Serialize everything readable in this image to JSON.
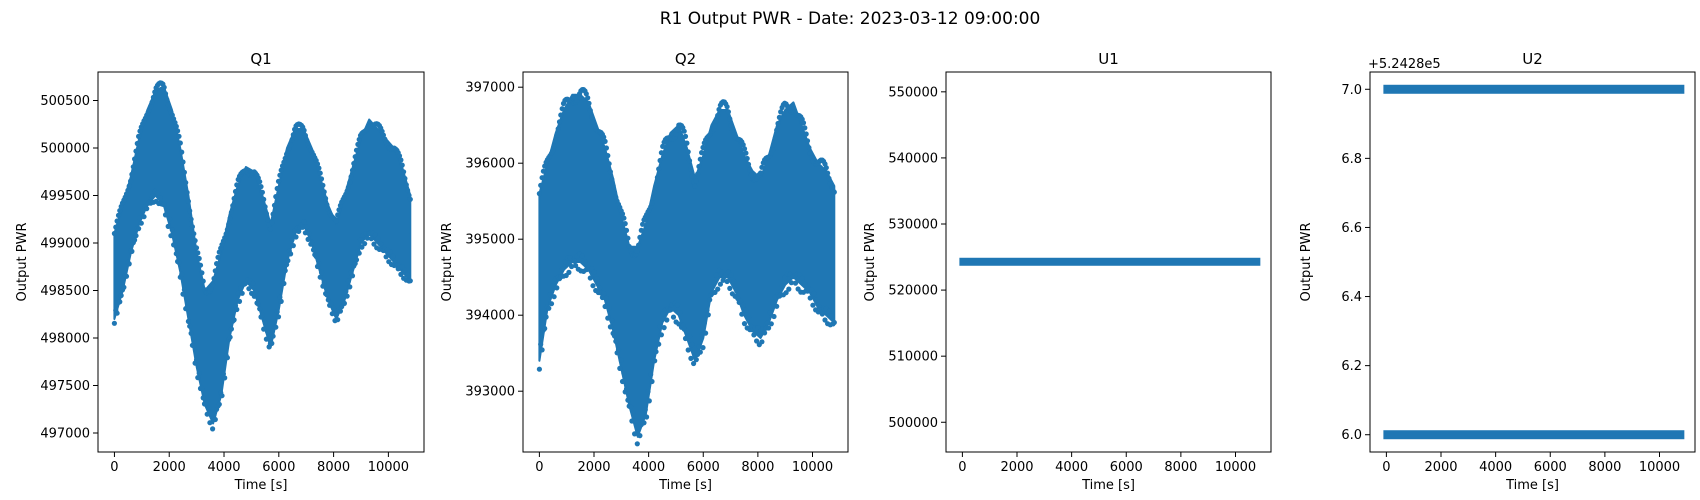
{
  "figure": {
    "title": "R1 Output PWR - Date: 2023-03-12 09:00:00",
    "marker_color": "#1f77b4"
  },
  "chart_data": [
    {
      "type": "scatter",
      "title": "Q1",
      "xlabel": "Time [s]",
      "ylabel": "Output PWR",
      "xlim": [
        -600,
        11300
      ],
      "ylim": [
        496800,
        500800
      ],
      "xticks": [
        0,
        2000,
        4000,
        6000,
        8000,
        10000
      ],
      "xtick_labels": [
        "0",
        "2000",
        "4000",
        "6000",
        "8000",
        "10000"
      ],
      "yticks": [
        497000,
        497500,
        498000,
        498500,
        499000,
        499500,
        500000,
        500500
      ],
      "ytick_labels": [
        "497000",
        "497500",
        "498000",
        "498500",
        "499000",
        "499500",
        "500000",
        "500500"
      ],
      "offset_label": "",
      "x": [
        0,
        300,
        600,
        900,
        1200,
        1500,
        1800,
        2100,
        2400,
        2700,
        3000,
        3300,
        3600,
        3900,
        4200,
        4500,
        4800,
        5100,
        5400,
        5700,
        6000,
        6300,
        6600,
        6900,
        7200,
        7500,
        7800,
        8100,
        8400,
        8700,
        9000,
        9300,
        9600,
        9900,
        10200,
        10500,
        10800
      ],
      "y_low": [
        498200,
        498500,
        498900,
        499200,
        499400,
        499500,
        499400,
        499100,
        498700,
        498200,
        497700,
        497300,
        497100,
        497400,
        498000,
        498400,
        498600,
        498500,
        498200,
        497900,
        498300,
        498800,
        499100,
        499200,
        499000,
        498700,
        498400,
        498200,
        498400,
        498700,
        499000,
        499100,
        499000,
        498900,
        498800,
        498700,
        498600
      ],
      "y_high": [
        499100,
        499400,
        499700,
        500100,
        500400,
        500600,
        500650,
        500400,
        500000,
        499500,
        498900,
        498500,
        498600,
        498900,
        499300,
        499600,
        499800,
        499750,
        499500,
        499200,
        499600,
        500000,
        500200,
        500200,
        500000,
        499700,
        499400,
        499200,
        499500,
        499800,
        500100,
        500300,
        500200,
        500100,
        500000,
        499800,
        499500
      ]
    },
    {
      "type": "scatter",
      "title": "Q2",
      "xlabel": "Time [s]",
      "ylabel": "Output PWR",
      "xlim": [
        -600,
        11300
      ],
      "ylim": [
        392200,
        397200
      ],
      "xticks": [
        0,
        2000,
        4000,
        6000,
        8000,
        10000
      ],
      "xtick_labels": [
        "0",
        "2000",
        "4000",
        "6000",
        "8000",
        "10000"
      ],
      "yticks": [
        393000,
        394000,
        395000,
        396000,
        397000
      ],
      "ytick_labels": [
        "393000",
        "394000",
        "395000",
        "396000",
        "397000"
      ],
      "offset_label": "",
      "x": [
        0,
        300,
        600,
        900,
        1200,
        1500,
        1800,
        2100,
        2400,
        2700,
        3000,
        3300,
        3600,
        3900,
        4200,
        4500,
        4800,
        5100,
        5400,
        5700,
        6000,
        6300,
        6600,
        6900,
        7200,
        7500,
        7800,
        8100,
        8400,
        8700,
        9000,
        9300,
        9600,
        9900,
        10200,
        10500,
        10800
      ],
      "y_low": [
        393400,
        394100,
        394400,
        394600,
        394700,
        394700,
        394600,
        394400,
        394200,
        393800,
        393300,
        392800,
        392400,
        392700,
        393400,
        393900,
        394100,
        394000,
        393700,
        393400,
        393700,
        394300,
        394500,
        394500,
        394300,
        394000,
        393800,
        393700,
        393900,
        394200,
        394400,
        394500,
        394400,
        394300,
        394100,
        394000,
        393900
      ],
      "y_high": [
        395600,
        396000,
        396400,
        396700,
        396900,
        396900,
        396800,
        396500,
        396200,
        395800,
        395300,
        394900,
        394900,
        395200,
        395700,
        396100,
        396400,
        396500,
        396200,
        395800,
        396100,
        396500,
        396700,
        396700,
        396400,
        396100,
        395900,
        395800,
        396100,
        396500,
        396700,
        396800,
        396500,
        396200,
        396000,
        395900,
        395700
      ]
    },
    {
      "type": "scatter",
      "title": "U1",
      "xlabel": "Time [s]",
      "ylabel": "Output PWR",
      "xlim": [
        -600,
        11300
      ],
      "ylim": [
        495500,
        553000
      ],
      "xticks": [
        0,
        2000,
        4000,
        6000,
        8000,
        10000
      ],
      "xtick_labels": [
        "0",
        "2000",
        "4000",
        "6000",
        "8000",
        "10000"
      ],
      "yticks": [
        500000,
        510000,
        520000,
        530000,
        540000,
        550000
      ],
      "ytick_labels": [
        "500000",
        "510000",
        "520000",
        "530000",
        "540000",
        "550000"
      ],
      "offset_label": "",
      "x": [
        0,
        10800
      ],
      "y_low": [
        524283,
        524283
      ],
      "y_high": [
        524287,
        524287
      ]
    },
    {
      "type": "scatter",
      "title": "U2",
      "xlabel": "Time [s]",
      "ylabel": "Output PWR",
      "xlim": [
        -600,
        11300
      ],
      "ylim": [
        5.95,
        7.05
      ],
      "xticks": [
        0,
        2000,
        4000,
        6000,
        8000,
        10000
      ],
      "xtick_labels": [
        "0",
        "2000",
        "4000",
        "6000",
        "8000",
        "10000"
      ],
      "yticks": [
        6.0,
        6.2,
        6.4,
        6.6,
        6.8,
        7.0
      ],
      "ytick_labels": [
        "6.0",
        "6.2",
        "6.4",
        "6.6",
        "6.8",
        "7.0"
      ],
      "offset_label": "+5.2428e5",
      "x": [
        0,
        10800
      ],
      "levels": [
        6.0,
        7.0
      ]
    }
  ]
}
